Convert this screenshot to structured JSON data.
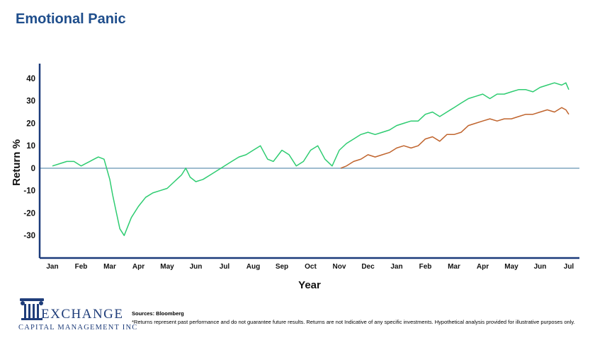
{
  "title": "Emotional Panic",
  "chart_data": {
    "type": "line",
    "xlabel": "Year",
    "ylabel": "Return %",
    "ylim": [
      -40,
      45
    ],
    "yticks": [
      40,
      30,
      20,
      10,
      0,
      -10,
      -20,
      -30
    ],
    "grid": false,
    "x_categories": [
      "Jan",
      "Feb",
      "Mar",
      "Apr",
      "May",
      "Jun",
      "Jul",
      "Aug",
      "Sep",
      "Oct",
      "Nov",
      "Dec",
      "Jan",
      "Feb",
      "Mar",
      "Apr",
      "May",
      "Jun",
      "Jul"
    ],
    "series": [
      {
        "color": "#2ecc71",
        "x": [
          0,
          0.25,
          0.5,
          0.75,
          1.0,
          1.15,
          1.3,
          1.45,
          1.6,
          1.8,
          2.0,
          2.1,
          2.2,
          2.35,
          2.5,
          2.75,
          3.0,
          3.25,
          3.5,
          3.75,
          4.0,
          4.25,
          4.5,
          4.65,
          4.8,
          5.0,
          5.25,
          5.5,
          5.75,
          6.0,
          6.25,
          6.5,
          6.75,
          7.0,
          7.25,
          7.5,
          7.7,
          8.0,
          8.25,
          8.5,
          8.75,
          9.0,
          9.25,
          9.5,
          9.75,
          10.0,
          10.25,
          10.5,
          10.75,
          11.0,
          11.25,
          11.5,
          11.75,
          12.0,
          12.25,
          12.5,
          12.75,
          13.0,
          13.25,
          13.5,
          13.75,
          14.0,
          14.25,
          14.5,
          14.75,
          15.0,
          15.25,
          15.5,
          15.75,
          16.0,
          16.25,
          16.5,
          16.75,
          17.0,
          17.25,
          17.5,
          17.75,
          17.9,
          18.0
        ],
        "y": [
          1,
          2,
          3,
          3,
          1,
          2,
          3,
          4,
          5,
          4,
          -5,
          -12,
          -18,
          -27,
          -30,
          -22,
          -17,
          -13,
          -11,
          -10,
          -9,
          -6,
          -3,
          0,
          -4,
          -6,
          -5,
          -3,
          -1,
          1,
          3,
          5,
          6,
          8,
          10,
          4,
          3,
          8,
          6,
          1,
          3,
          8,
          10,
          4,
          1,
          8,
          11,
          13,
          15,
          16,
          15,
          16,
          17,
          19,
          20,
          21,
          21,
          24,
          25,
          23,
          25,
          27,
          29,
          31,
          32,
          33,
          31,
          33,
          33,
          34,
          35,
          35,
          34,
          36,
          37,
          38,
          37,
          38,
          35
        ]
      },
      {
        "color": "#c0642d",
        "x": [
          10.05,
          10.25,
          10.5,
          10.75,
          11.0,
          11.25,
          11.5,
          11.75,
          12.0,
          12.25,
          12.5,
          12.75,
          13.0,
          13.25,
          13.5,
          13.75,
          14.0,
          14.25,
          14.5,
          14.75,
          15.0,
          15.25,
          15.5,
          15.75,
          16.0,
          16.25,
          16.5,
          16.75,
          17.0,
          17.25,
          17.5,
          17.75,
          17.9,
          18.0
        ],
        "y": [
          0,
          1,
          3,
          4,
          6,
          5,
          6,
          7,
          9,
          10,
          9,
          10,
          13,
          14,
          12,
          15,
          15,
          16,
          19,
          20,
          21,
          22,
          21,
          22,
          22,
          23,
          24,
          24,
          25,
          26,
          25,
          27,
          26,
          24
        ]
      }
    ]
  },
  "footer": {
    "logo_name": "EXCHANGE",
    "logo_sub": "CAPITAL MANAGEMENT INC",
    "sources": "Sources: Bloomberg",
    "disclaimer": "*Returns represent past performance and do not guarantee future results. Returns are not Indicative of any specific investments. Hypothetical analysis provided for illustrative purposes only."
  },
  "colors": {
    "title": "#1f4e8c",
    "axis": "#1b3a7a",
    "zero_line": "#7fa6bf",
    "green": "#2ecc71",
    "orange": "#c0642d"
  }
}
